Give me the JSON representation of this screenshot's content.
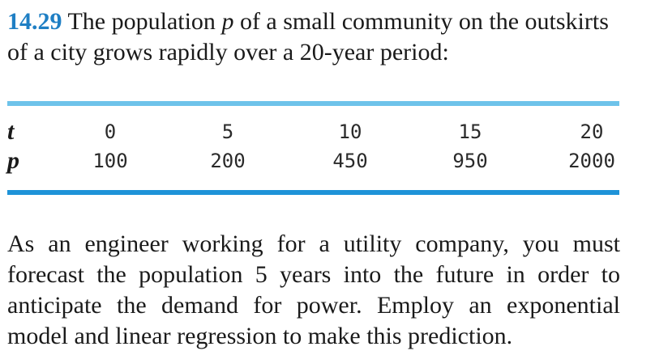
{
  "problem": {
    "number": "14.29",
    "text_before": "The population",
    "variable": "p",
    "text_after": "of a small community on the outskirts of a city grows rapidly over a 20-year period:"
  },
  "table": {
    "row_t": {
      "label": "t",
      "values": [
        "0",
        "5",
        "10",
        "15",
        "20"
      ]
    },
    "row_p": {
      "label": "p",
      "values": [
        "100",
        "200",
        "450",
        "950",
        "2000"
      ]
    }
  },
  "paragraph": {
    "text": "As an engineer working for a utility company, you must forecast the population 5 years into the future in order to anticipate the demand for power. Employ an exponential model and linear regression to make this prediction."
  },
  "colors": {
    "problem_number": "#1f7fc4",
    "rule_top": "#6ec3ea",
    "rule_bottom": "#1e93d8"
  }
}
